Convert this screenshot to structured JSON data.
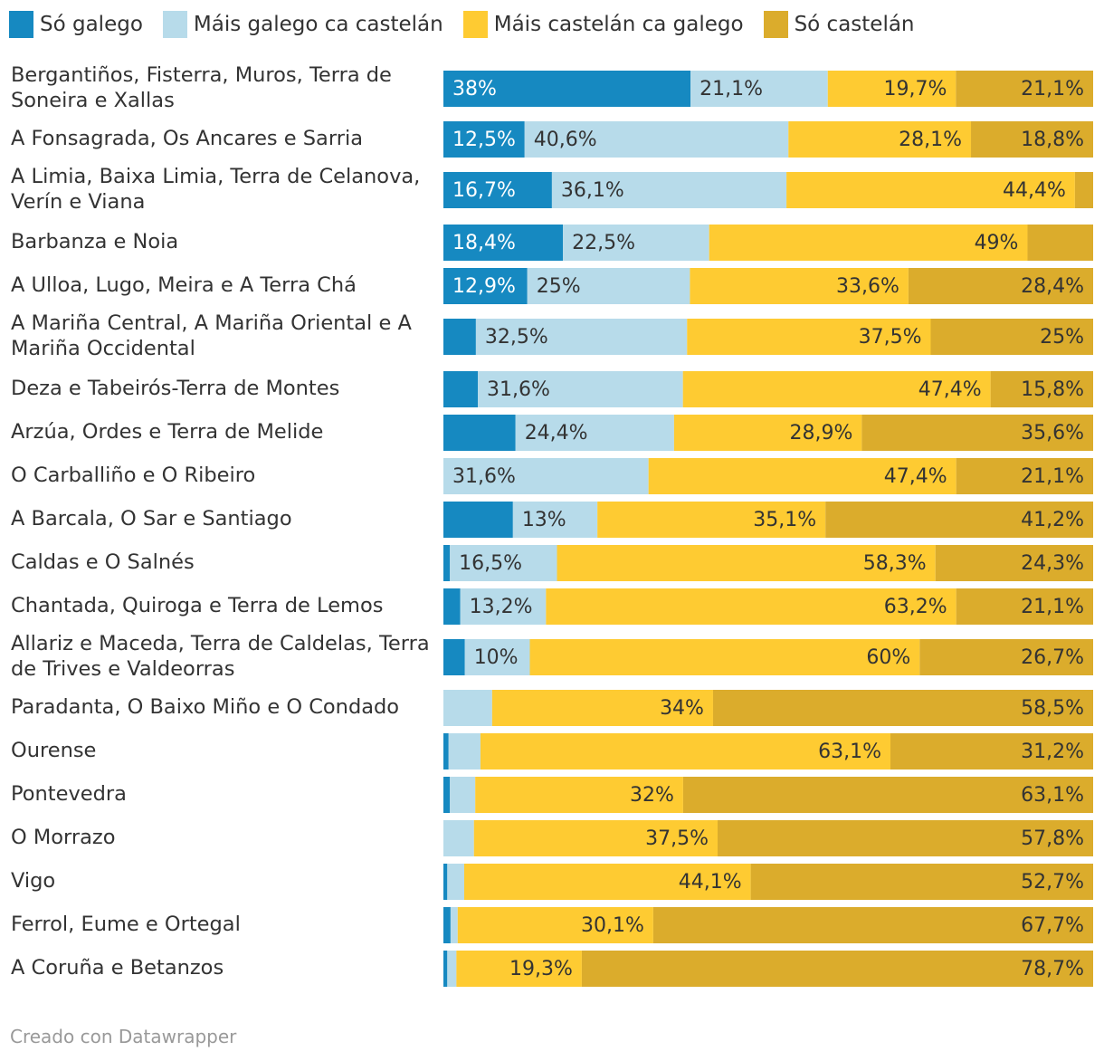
{
  "chart_data": {
    "type": "bar",
    "orientation": "horizontal",
    "stacked": true,
    "normalized_to_100": true,
    "title": "",
    "legend_position": "top-left",
    "series": [
      {
        "name": "Só galego",
        "color": "#1689c1"
      },
      {
        "name": "Máis galego ca castelán",
        "color": "#b7dbea"
      },
      {
        "name": "Máis castelán ca galego",
        "color": "#fecb32"
      },
      {
        "name": "Só castelán",
        "color": "#dbac2c"
      }
    ],
    "rows": [
      {
        "label": "Bergantiños, Fisterra, Muros, Terra de Soneira e Xallas",
        "values": [
          38,
          21.1,
          19.7,
          21.1
        ],
        "labels": [
          "38%",
          "21,1%",
          "19,7%",
          "21,1%"
        ]
      },
      {
        "label": "A Fonsagrada, Os Ancares e Sarria",
        "values": [
          12.5,
          40.6,
          28.1,
          18.8
        ],
        "labels": [
          "12,5%",
          "40,6%",
          "28,1%",
          "18,8%"
        ]
      },
      {
        "label": "A Limia, Baixa Limia, Terra de Celanova, Verín e Viana",
        "values": [
          16.7,
          36.1,
          44.4,
          2.8
        ],
        "labels": [
          "16,7%",
          "36,1%",
          "44,4%",
          ""
        ]
      },
      {
        "label": "Barbanza e Noia",
        "values": [
          18.4,
          22.5,
          49,
          10.1
        ],
        "labels": [
          "18,4%",
          "22,5%",
          "49%",
          ""
        ]
      },
      {
        "label": "A Ulloa, Lugo, Meira e A Terra Chá",
        "values": [
          12.9,
          25,
          33.6,
          28.4
        ],
        "labels": [
          "12,9%",
          "25%",
          "33,6%",
          "28,4%"
        ]
      },
      {
        "label": "A Mariña Central, A Mariña Oriental e A Mariña Occidental",
        "values": [
          5,
          32.5,
          37.5,
          25
        ],
        "labels": [
          "",
          "32,5%",
          "37,5%",
          "25%"
        ]
      },
      {
        "label": "Deza e Tabeirós-Terra de Montes",
        "values": [
          5.3,
          31.6,
          47.4,
          15.8
        ],
        "labels": [
          "",
          "31,6%",
          "47,4%",
          "15,8%"
        ]
      },
      {
        "label": "Arzúa, Ordes e Terra de Melide",
        "values": [
          11.1,
          24.4,
          28.9,
          35.6
        ],
        "labels": [
          "",
          "24,4%",
          "28,9%",
          "35,6%"
        ]
      },
      {
        "label": "O Carballiño e O Ribeiro",
        "values": [
          0,
          31.6,
          47.4,
          21.1
        ],
        "labels": [
          "",
          "31,6%",
          "47,4%",
          "21,1%"
        ]
      },
      {
        "label": "A Barcala, O Sar e Santiago",
        "values": [
          10.7,
          13,
          35.1,
          41.2
        ],
        "labels": [
          "",
          "13%",
          "35,1%",
          "41,2%"
        ]
      },
      {
        "label": "Caldas e O Salnés",
        "values": [
          1,
          16.5,
          58.3,
          24.3
        ],
        "labels": [
          "",
          "16,5%",
          "58,3%",
          "24,3%"
        ]
      },
      {
        "label": "Chantada, Quiroga e Terra de Lemos",
        "values": [
          2.6,
          13.2,
          63.2,
          21.1
        ],
        "labels": [
          "",
          "13,2%",
          "63,2%",
          "21,1%"
        ]
      },
      {
        "label": "Allariz e Maceda, Terra de Caldelas, Terra de Trives e Valdeorras",
        "values": [
          3.3,
          10,
          60,
          26.7
        ],
        "labels": [
          "",
          "10%",
          "60%",
          "26,7%"
        ]
      },
      {
        "label": "Paradanta, O Baixo Miño e O Condado",
        "values": [
          0,
          7.5,
          34,
          58.5
        ],
        "labels": [
          "",
          "",
          "34%",
          "58,5%"
        ]
      },
      {
        "label": "Ourense",
        "values": [
          0.8,
          4.9,
          63.1,
          31.2
        ],
        "labels": [
          "",
          "",
          "63,1%",
          "31,2%"
        ]
      },
      {
        "label": "Pontevedra",
        "values": [
          1,
          3.9,
          32,
          63.1
        ],
        "labels": [
          "",
          "",
          "32%",
          "63,1%"
        ]
      },
      {
        "label": "O Morrazo",
        "values": [
          0,
          4.7,
          37.5,
          57.8
        ],
        "labels": [
          "",
          "",
          "37,5%",
          "57,8%"
        ]
      },
      {
        "label": "Vigo",
        "values": [
          0.6,
          2.6,
          44.1,
          52.7
        ],
        "labels": [
          "",
          "",
          "44,1%",
          "52,7%"
        ]
      },
      {
        "label": "Ferrol, Eume e Ortegal",
        "values": [
          1.1,
          1.1,
          30.1,
          67.7
        ],
        "labels": [
          "",
          "",
          "30,1%",
          "67,7%"
        ]
      },
      {
        "label": "A Coruña e Betanzos",
        "values": [
          0.6,
          1.4,
          19.3,
          78.7
        ],
        "labels": [
          "",
          "",
          "19,3%",
          "78,7%"
        ]
      }
    ],
    "xlim": [
      0,
      100
    ],
    "xlabel": "",
    "ylabel": "",
    "grid": false
  },
  "footer": {
    "credit": "Creado con Datawrapper"
  }
}
